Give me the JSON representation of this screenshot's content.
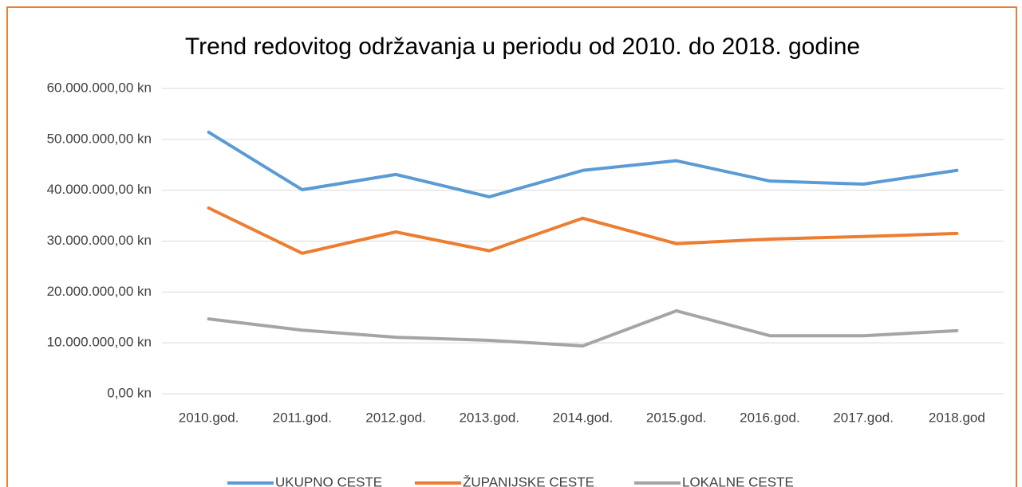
{
  "chart_data": {
    "type": "line",
    "title": "Trend redovitog održavanja u periodu od 2010. do 2018. godine",
    "categories": [
      "2010.god.",
      "2011.god.",
      "2012.god.",
      "2013.god.",
      "2014.god.",
      "2015.god.",
      "2016.god.",
      "2017.god.",
      "2018.god"
    ],
    "series": [
      {
        "name": "UKUPNO CESTE",
        "color": "#5b9bd5",
        "values": [
          51400000,
          40100000,
          43100000,
          38700000,
          43900000,
          45800000,
          41800000,
          41200000,
          43900000
        ]
      },
      {
        "name": "ŽUPANIJSKE CESTE",
        "color": "#ed7d31",
        "values": [
          36500000,
          27600000,
          31800000,
          28100000,
          34500000,
          29500000,
          30400000,
          30900000,
          31500000
        ]
      },
      {
        "name": "LOKALNE CESTE",
        "color": "#a5a5a5",
        "values": [
          14700000,
          12500000,
          11100000,
          10500000,
          9400000,
          16300000,
          11400000,
          11400000,
          12400000
        ]
      }
    ],
    "ylim": [
      0,
      60000000
    ],
    "yticks": [
      {
        "value": 0,
        "label": "0,00 kn"
      },
      {
        "value": 10000000,
        "label": "10.000.000,00 kn"
      },
      {
        "value": 20000000,
        "label": "20.000.000,00 kn"
      },
      {
        "value": 30000000,
        "label": "30.000.000,00 kn"
      },
      {
        "value": 40000000,
        "label": "40.000.000,00 kn"
      },
      {
        "value": 50000000,
        "label": "50.000.000,00 kn"
      },
      {
        "value": 60000000,
        "label": "60.000.000,00 kn"
      }
    ],
    "grid": true,
    "legend": "bottom"
  }
}
